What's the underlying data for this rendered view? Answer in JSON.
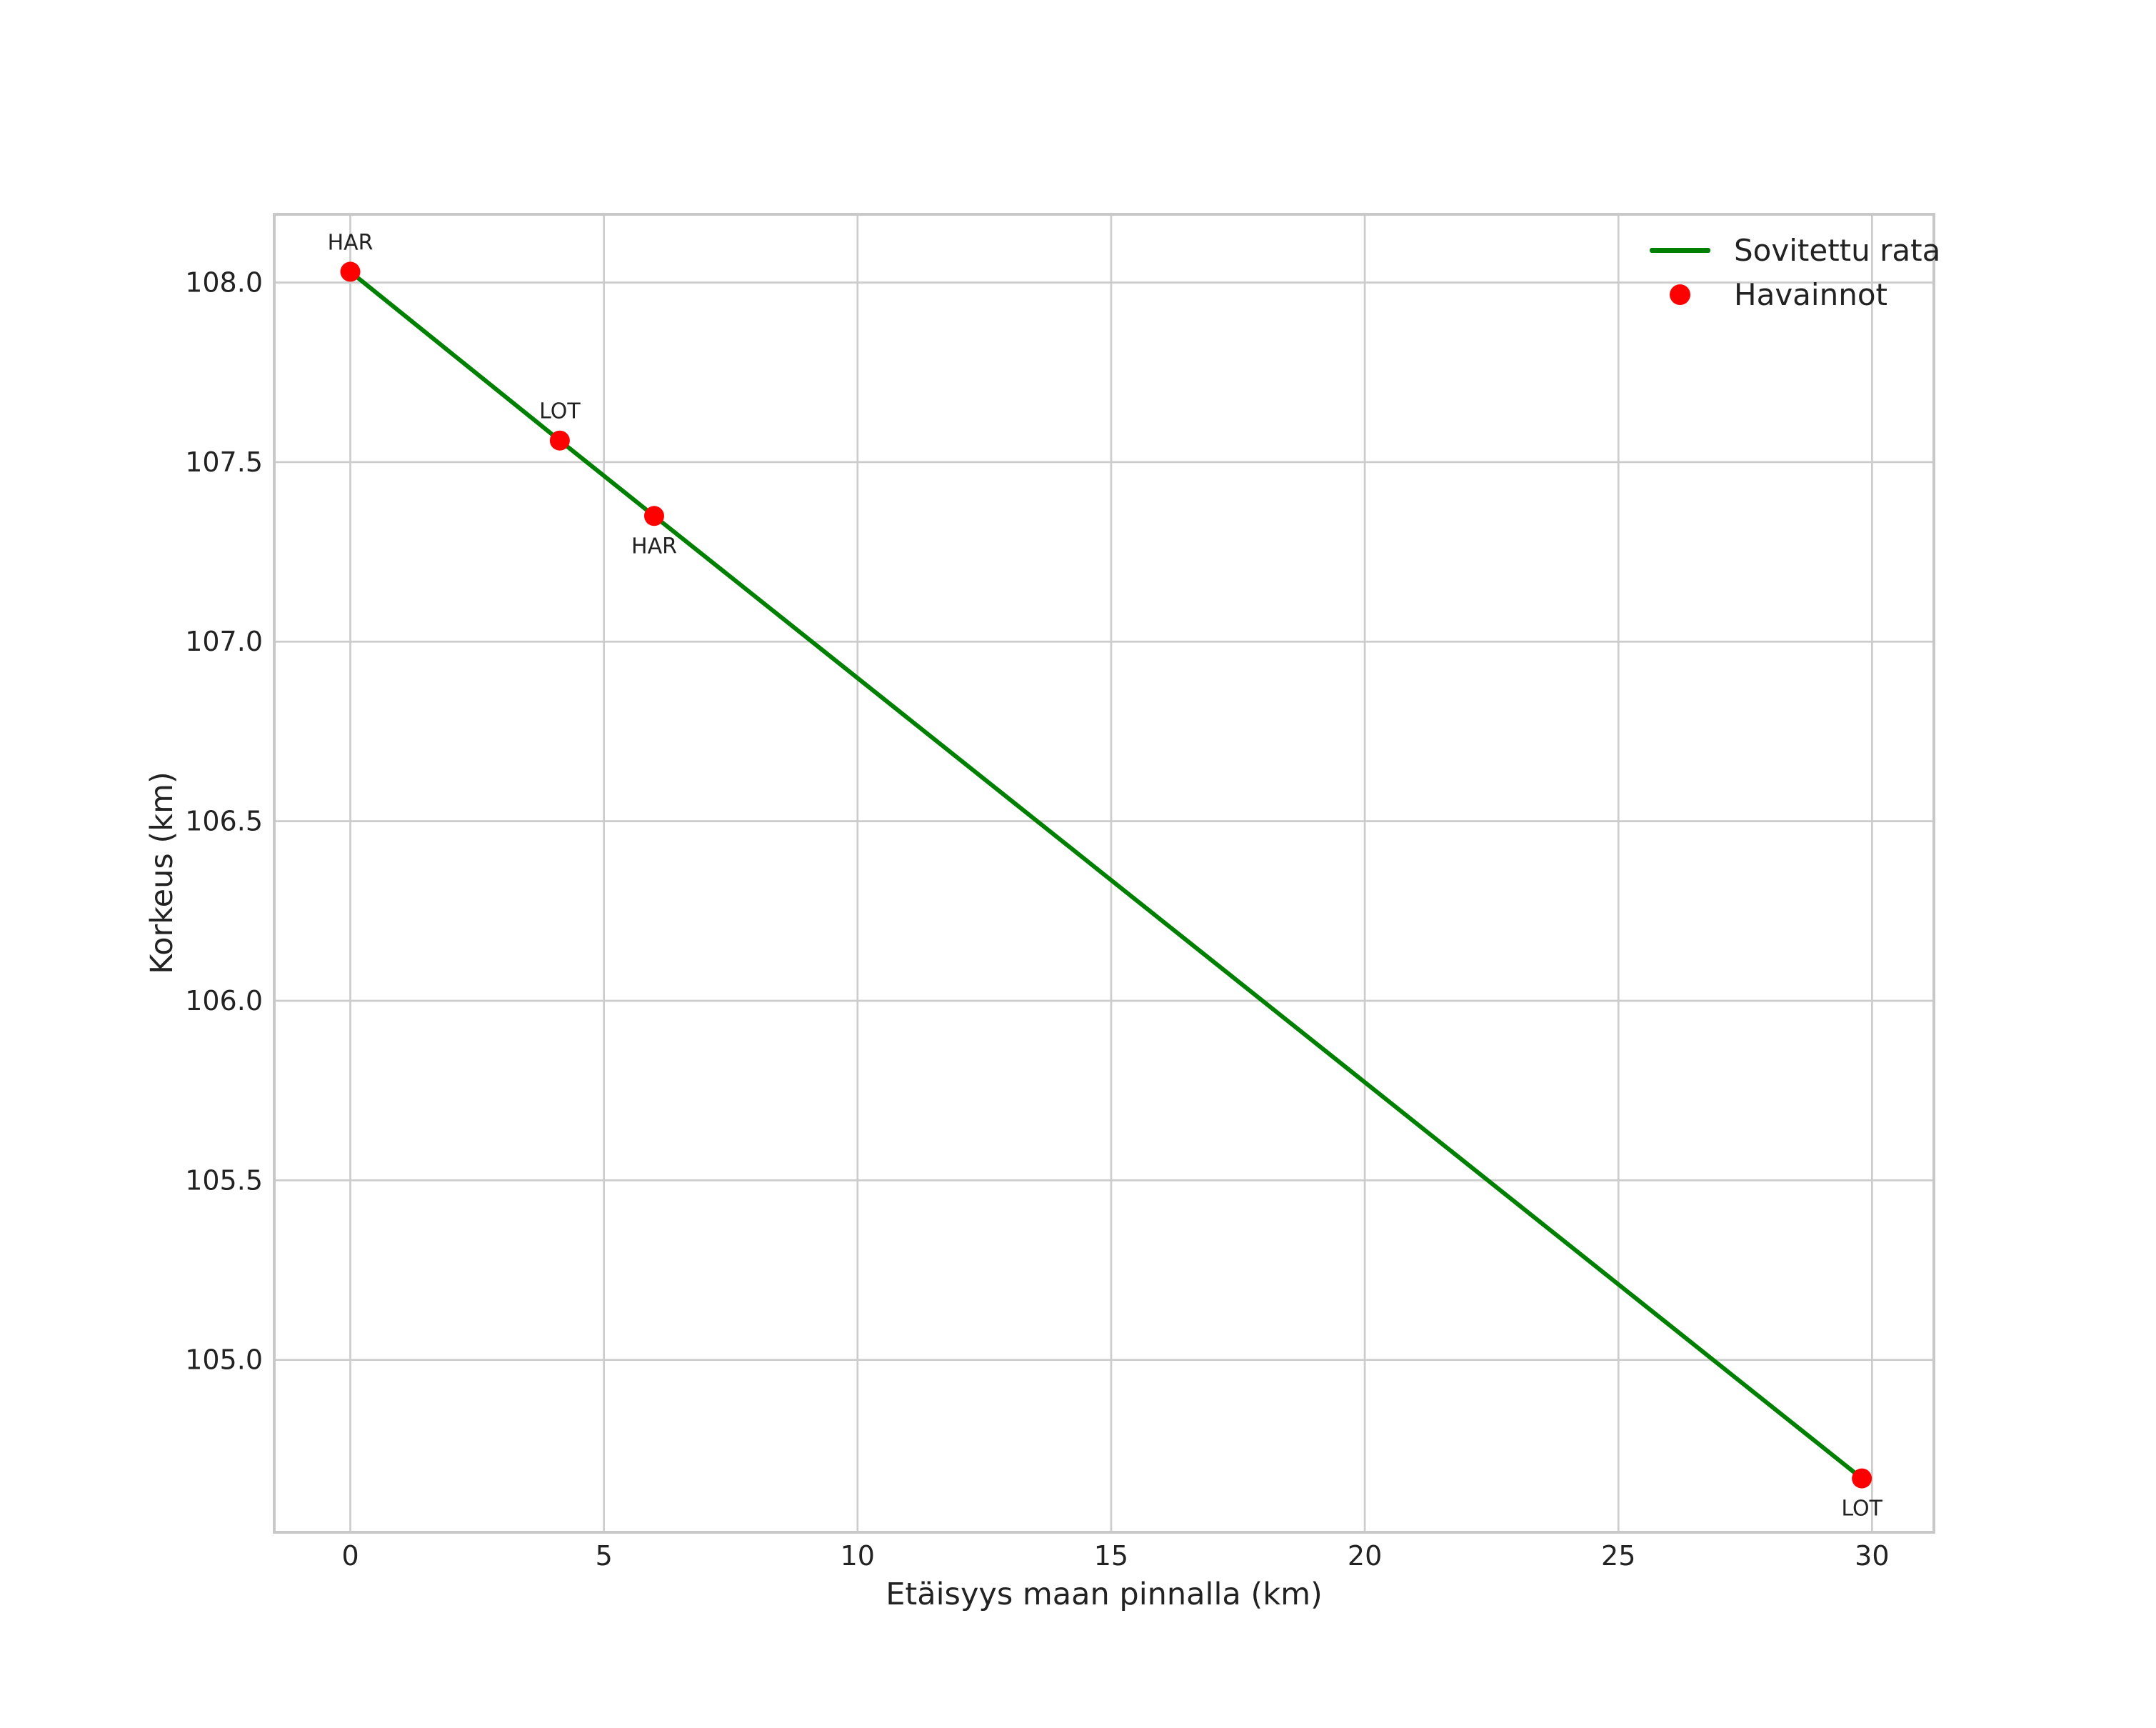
{
  "style": {
    "background": "#ffffff",
    "grid_color": "#cccccc",
    "spine_color": "#c8c8c8",
    "text_color": "#222222",
    "line_color": "#008000",
    "marker_color": "#ff0000"
  },
  "chart_data": {
    "type": "line",
    "title": "",
    "xlabel": "Etäisyys maan pinnalla (km)",
    "ylabel": "Korkeus (km)",
    "xlim": [
      -1.5,
      31.22
    ],
    "ylim": [
      104.52,
      108.19
    ],
    "grid": true,
    "legend_position": "upper right",
    "x_ticks": [
      0,
      5,
      10,
      15,
      20,
      25,
      30
    ],
    "x_tick_labels": [
      "0",
      "5",
      "10",
      "15",
      "20",
      "25",
      "30"
    ],
    "y_ticks": [
      108.0,
      107.5,
      107.0,
      106.5,
      106.0,
      105.5,
      105.0
    ],
    "y_tick_labels": [
      "108.0",
      "107.5",
      "107.0",
      "106.5",
      "106.0",
      "105.5",
      "105.0"
    ],
    "series": [
      {
        "name": "Sovitettu rata",
        "kind": "line",
        "color": "#008000",
        "points": [
          [
            0,
            108.03
          ],
          [
            4.13,
            107.56
          ],
          [
            5.99,
            107.35
          ],
          [
            29.8,
            104.67
          ]
        ]
      },
      {
        "name": "Havainnot",
        "kind": "scatter",
        "color": "#ff0000",
        "points": [
          [
            0,
            108.03
          ],
          [
            4.13,
            107.56
          ],
          [
            5.99,
            107.35
          ],
          [
            29.8,
            104.67
          ]
        ],
        "point_labels": [
          {
            "text": "HAR",
            "placement": "above"
          },
          {
            "text": "LOT",
            "placement": "above"
          },
          {
            "text": "HAR",
            "placement": "below"
          },
          {
            "text": "LOT",
            "placement": "below"
          }
        ]
      }
    ]
  },
  "legend": {
    "items": [
      {
        "label": "Sovitettu rata",
        "marker": "line",
        "color": "#008000"
      },
      {
        "label": "Havainnot",
        "marker": "dot",
        "color": "#ff0000"
      }
    ]
  }
}
